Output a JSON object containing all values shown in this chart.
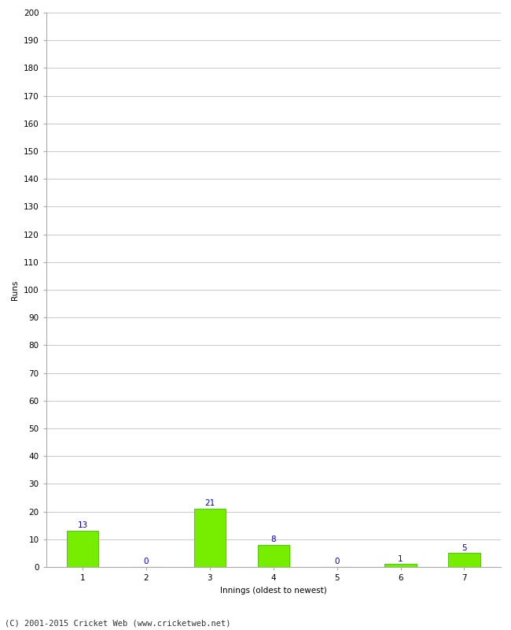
{
  "categories": [
    "1",
    "2",
    "3",
    "4",
    "5",
    "6",
    "7"
  ],
  "values": [
    13,
    0,
    21,
    8,
    0,
    1,
    5
  ],
  "bar_color": "#77ee00",
  "bar_edge_color": "#55cc00",
  "label_color": "#0000cc",
  "xlabel": "Innings (oldest to newest)",
  "ylabel": "Runs",
  "ylim": [
    0,
    200
  ],
  "ytick_step": 10,
  "footnote": "(C) 2001-2015 Cricket Web (www.cricketweb.net)",
  "background_color": "#ffffff",
  "grid_color": "#cccccc",
  "label_fontsize": 7.5,
  "axis_fontsize": 7.5,
  "ylabel_fontsize": 7.5,
  "xlabel_fontsize": 7.5,
  "footnote_fontsize": 7.5
}
